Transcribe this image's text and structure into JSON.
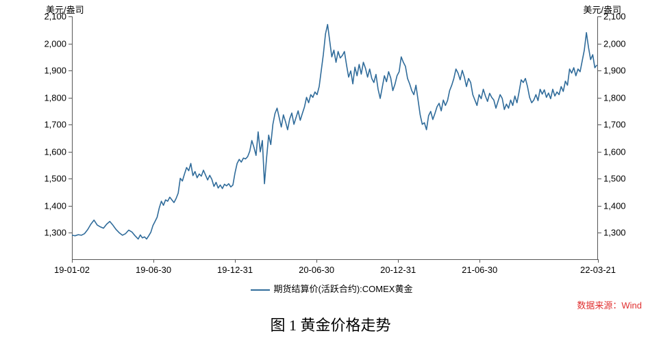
{
  "chart": {
    "type": "line",
    "y_axis_title_left": "美元/盎司",
    "y_axis_title_right": "美元/盎司",
    "ylim": [
      1200,
      2100
    ],
    "yticks": [
      1300,
      1400,
      1500,
      1600,
      1700,
      1800,
      1900,
      2000,
      2100
    ],
    "ytick_labels": [
      "1,300",
      "1,400",
      "1,500",
      "1,600",
      "1,700",
      "1,800",
      "1,900",
      "2,000",
      "2,100"
    ],
    "xticks": [
      {
        "pos": 0.0,
        "label": "19-01-02"
      },
      {
        "pos": 0.155,
        "label": "19-06-30"
      },
      {
        "pos": 0.31,
        "label": "19-12-31"
      },
      {
        "pos": 0.465,
        "label": "20-06-30"
      },
      {
        "pos": 0.62,
        "label": "20-12-31"
      },
      {
        "pos": 0.775,
        "label": "21-06-30"
      },
      {
        "pos": 1.0,
        "label": "22-03-21"
      }
    ],
    "line_color": "#2f6b9a",
    "line_width": 1.6,
    "background_color": "#ffffff",
    "axis_color": "#555555",
    "label_fontsize": 13,
    "legend": {
      "label": "期货结算价(活跃合约):COMEX黄金",
      "color": "#2f6b9a",
      "position": "bottom-center"
    },
    "series": [
      [
        0.0,
        1289
      ],
      [
        0.006,
        1287
      ],
      [
        0.012,
        1291
      ],
      [
        0.018,
        1289
      ],
      [
        0.024,
        1295
      ],
      [
        0.03,
        1310
      ],
      [
        0.036,
        1330
      ],
      [
        0.042,
        1345
      ],
      [
        0.048,
        1327
      ],
      [
        0.054,
        1320
      ],
      [
        0.06,
        1315
      ],
      [
        0.066,
        1330
      ],
      [
        0.072,
        1340
      ],
      [
        0.078,
        1326
      ],
      [
        0.084,
        1310
      ],
      [
        0.09,
        1298
      ],
      [
        0.096,
        1289
      ],
      [
        0.102,
        1295
      ],
      [
        0.108,
        1308
      ],
      [
        0.114,
        1301
      ],
      [
        0.12,
        1287
      ],
      [
        0.126,
        1275
      ],
      [
        0.13,
        1290
      ],
      [
        0.134,
        1279
      ],
      [
        0.138,
        1283
      ],
      [
        0.142,
        1275
      ],
      [
        0.146,
        1287
      ],
      [
        0.15,
        1300
      ],
      [
        0.154,
        1325
      ],
      [
        0.158,
        1340
      ],
      [
        0.162,
        1356
      ],
      [
        0.166,
        1390
      ],
      [
        0.17,
        1415
      ],
      [
        0.174,
        1400
      ],
      [
        0.178,
        1420
      ],
      [
        0.182,
        1415
      ],
      [
        0.186,
        1430
      ],
      [
        0.19,
        1420
      ],
      [
        0.194,
        1410
      ],
      [
        0.198,
        1425
      ],
      [
        0.202,
        1445
      ],
      [
        0.206,
        1500
      ],
      [
        0.21,
        1490
      ],
      [
        0.214,
        1516
      ],
      [
        0.218,
        1540
      ],
      [
        0.222,
        1528
      ],
      [
        0.226,
        1555
      ],
      [
        0.23,
        1510
      ],
      [
        0.234,
        1525
      ],
      [
        0.238,
        1502
      ],
      [
        0.242,
        1516
      ],
      [
        0.246,
        1508
      ],
      [
        0.25,
        1530
      ],
      [
        0.254,
        1512
      ],
      [
        0.258,
        1494
      ],
      [
        0.262,
        1511
      ],
      [
        0.266,
        1496
      ],
      [
        0.27,
        1470
      ],
      [
        0.274,
        1485
      ],
      [
        0.278,
        1464
      ],
      [
        0.282,
        1475
      ],
      [
        0.286,
        1462
      ],
      [
        0.29,
        1478
      ],
      [
        0.294,
        1472
      ],
      [
        0.298,
        1480
      ],
      [
        0.302,
        1468
      ],
      [
        0.306,
        1475
      ],
      [
        0.31,
        1520
      ],
      [
        0.314,
        1555
      ],
      [
        0.318,
        1570
      ],
      [
        0.322,
        1560
      ],
      [
        0.326,
        1575
      ],
      [
        0.33,
        1572
      ],
      [
        0.334,
        1580
      ],
      [
        0.338,
        1600
      ],
      [
        0.342,
        1640
      ],
      [
        0.346,
        1615
      ],
      [
        0.35,
        1585
      ],
      [
        0.354,
        1672
      ],
      [
        0.358,
        1598
      ],
      [
        0.362,
        1640
      ],
      [
        0.366,
        1480
      ],
      [
        0.37,
        1575
      ],
      [
        0.374,
        1660
      ],
      [
        0.378,
        1625
      ],
      [
        0.382,
        1700
      ],
      [
        0.386,
        1740
      ],
      [
        0.39,
        1760
      ],
      [
        0.394,
        1725
      ],
      [
        0.398,
        1690
      ],
      [
        0.402,
        1735
      ],
      [
        0.406,
        1710
      ],
      [
        0.41,
        1680
      ],
      [
        0.414,
        1720
      ],
      [
        0.418,
        1742
      ],
      [
        0.422,
        1700
      ],
      [
        0.426,
        1725
      ],
      [
        0.43,
        1750
      ],
      [
        0.434,
        1715
      ],
      [
        0.438,
        1740
      ],
      [
        0.442,
        1764
      ],
      [
        0.446,
        1800
      ],
      [
        0.45,
        1780
      ],
      [
        0.454,
        1810
      ],
      [
        0.458,
        1800
      ],
      [
        0.462,
        1820
      ],
      [
        0.466,
        1810
      ],
      [
        0.47,
        1840
      ],
      [
        0.474,
        1900
      ],
      [
        0.478,
        1960
      ],
      [
        0.482,
        2035
      ],
      [
        0.486,
        2070
      ],
      [
        0.49,
        2010
      ],
      [
        0.494,
        1950
      ],
      [
        0.498,
        1975
      ],
      [
        0.502,
        1930
      ],
      [
        0.506,
        1970
      ],
      [
        0.51,
        1946
      ],
      [
        0.514,
        1955
      ],
      [
        0.518,
        1970
      ],
      [
        0.522,
        1920
      ],
      [
        0.526,
        1875
      ],
      [
        0.53,
        1898
      ],
      [
        0.534,
        1850
      ],
      [
        0.538,
        1912
      ],
      [
        0.542,
        1880
      ],
      [
        0.546,
        1922
      ],
      [
        0.55,
        1886
      ],
      [
        0.554,
        1930
      ],
      [
        0.558,
        1908
      ],
      [
        0.562,
        1875
      ],
      [
        0.566,
        1905
      ],
      [
        0.57,
        1870
      ],
      [
        0.574,
        1855
      ],
      [
        0.578,
        1885
      ],
      [
        0.582,
        1830
      ],
      [
        0.586,
        1796
      ],
      [
        0.59,
        1838
      ],
      [
        0.594,
        1880
      ],
      [
        0.598,
        1858
      ],
      [
        0.602,
        1895
      ],
      [
        0.606,
        1872
      ],
      [
        0.61,
        1825
      ],
      [
        0.614,
        1848
      ],
      [
        0.618,
        1880
      ],
      [
        0.622,
        1895
      ],
      [
        0.626,
        1950
      ],
      [
        0.63,
        1930
      ],
      [
        0.634,
        1915
      ],
      [
        0.638,
        1870
      ],
      [
        0.642,
        1850
      ],
      [
        0.646,
        1825
      ],
      [
        0.65,
        1810
      ],
      [
        0.654,
        1845
      ],
      [
        0.658,
        1790
      ],
      [
        0.662,
        1735
      ],
      [
        0.666,
        1700
      ],
      [
        0.67,
        1706
      ],
      [
        0.674,
        1680
      ],
      [
        0.678,
        1732
      ],
      [
        0.682,
        1748
      ],
      [
        0.686,
        1718
      ],
      [
        0.69,
        1740
      ],
      [
        0.694,
        1765
      ],
      [
        0.698,
        1778
      ],
      [
        0.702,
        1750
      ],
      [
        0.706,
        1790
      ],
      [
        0.71,
        1770
      ],
      [
        0.714,
        1788
      ],
      [
        0.718,
        1825
      ],
      [
        0.722,
        1845
      ],
      [
        0.726,
        1870
      ],
      [
        0.73,
        1905
      ],
      [
        0.734,
        1890
      ],
      [
        0.738,
        1865
      ],
      [
        0.742,
        1900
      ],
      [
        0.746,
        1875
      ],
      [
        0.75,
        1840
      ],
      [
        0.754,
        1870
      ],
      [
        0.758,
        1855
      ],
      [
        0.762,
        1810
      ],
      [
        0.766,
        1790
      ],
      [
        0.77,
        1770
      ],
      [
        0.774,
        1810
      ],
      [
        0.778,
        1795
      ],
      [
        0.782,
        1830
      ],
      [
        0.786,
        1805
      ],
      [
        0.79,
        1785
      ],
      [
        0.794,
        1815
      ],
      [
        0.798,
        1800
      ],
      [
        0.802,
        1790
      ],
      [
        0.806,
        1760
      ],
      [
        0.81,
        1785
      ],
      [
        0.814,
        1810
      ],
      [
        0.818,
        1796
      ],
      [
        0.822,
        1755
      ],
      [
        0.826,
        1775
      ],
      [
        0.83,
        1760
      ],
      [
        0.834,
        1790
      ],
      [
        0.838,
        1770
      ],
      [
        0.842,
        1805
      ],
      [
        0.846,
        1780
      ],
      [
        0.85,
        1820
      ],
      [
        0.854,
        1865
      ],
      [
        0.858,
        1855
      ],
      [
        0.862,
        1870
      ],
      [
        0.866,
        1840
      ],
      [
        0.87,
        1800
      ],
      [
        0.874,
        1780
      ],
      [
        0.878,
        1790
      ],
      [
        0.882,
        1810
      ],
      [
        0.886,
        1788
      ],
      [
        0.89,
        1830
      ],
      [
        0.894,
        1812
      ],
      [
        0.898,
        1828
      ],
      [
        0.902,
        1800
      ],
      [
        0.906,
        1816
      ],
      [
        0.91,
        1795
      ],
      [
        0.914,
        1830
      ],
      [
        0.918,
        1805
      ],
      [
        0.922,
        1820
      ],
      [
        0.926,
        1810
      ],
      [
        0.93,
        1840
      ],
      [
        0.934,
        1822
      ],
      [
        0.938,
        1860
      ],
      [
        0.942,
        1845
      ],
      [
        0.946,
        1905
      ],
      [
        0.95,
        1890
      ],
      [
        0.954,
        1910
      ],
      [
        0.958,
        1880
      ],
      [
        0.962,
        1905
      ],
      [
        0.966,
        1895
      ],
      [
        0.97,
        1935
      ],
      [
        0.974,
        1975
      ],
      [
        0.978,
        2040
      ],
      [
        0.982,
        1985
      ],
      [
        0.986,
        1940
      ],
      [
        0.99,
        1958
      ],
      [
        0.994,
        1910
      ],
      [
        0.998,
        1920
      ]
    ]
  },
  "source": {
    "text": "数据来源：Wind",
    "color": "#e03030"
  },
  "caption": "图 1 黄金价格走势"
}
